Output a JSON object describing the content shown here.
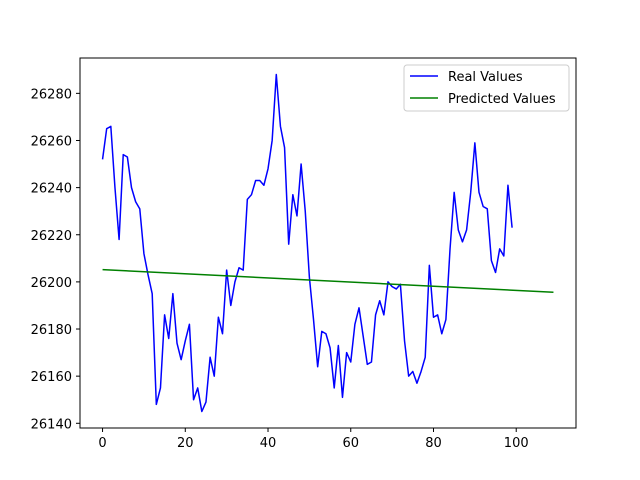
{
  "chart_data": {
    "type": "line",
    "title": "",
    "xlabel": "",
    "ylabel": "",
    "xlim": [
      -5.45,
      114.45
    ],
    "ylim": [
      26138,
      26295
    ],
    "x_ticks": [
      0,
      20,
      40,
      60,
      80,
      100
    ],
    "y_ticks": [
      26140,
      26160,
      26180,
      26200,
      26220,
      26240,
      26260,
      26280
    ],
    "grid": false,
    "legend_placement": "top-right",
    "series": [
      {
        "name": "Real Values",
        "color": "#0000ff",
        "x": [
          0,
          1,
          2,
          3,
          4,
          5,
          6,
          7,
          8,
          9,
          10,
          11,
          12,
          13,
          14,
          15,
          16,
          17,
          18,
          19,
          20,
          21,
          22,
          23,
          24,
          25,
          26,
          27,
          28,
          29,
          30,
          31,
          32,
          33,
          34,
          35,
          36,
          37,
          38,
          39,
          40,
          41,
          42,
          43,
          44,
          45,
          46,
          47,
          48,
          49,
          50,
          51,
          52,
          53,
          54,
          55,
          56,
          57,
          58,
          59,
          60,
          61,
          62,
          63,
          64,
          65,
          66,
          67,
          68,
          69,
          70,
          71,
          72,
          73,
          74,
          75,
          76,
          77,
          78,
          79,
          80,
          81,
          82,
          83,
          84,
          85,
          86,
          87,
          88,
          89,
          90,
          91,
          92,
          93,
          94,
          95,
          96,
          97,
          98,
          99
        ],
        "values": [
          26252,
          26265,
          26266,
          26240,
          26218,
          26254,
          26253,
          26240,
          26234,
          26231,
          26212,
          26203,
          26195,
          26148,
          26155,
          26186,
          26176,
          26195,
          26174,
          26167,
          26175,
          26182,
          26150,
          26155,
          26145,
          26149,
          26168,
          26160,
          26185,
          26178,
          26205,
          26190,
          26200,
          26206,
          26205,
          26235,
          26237,
          26243,
          26243,
          26241,
          26248,
          26260,
          26288,
          26266,
          26257,
          26216,
          26237,
          26228,
          26250,
          26230,
          26202,
          26184,
          26164,
          26179,
          26178,
          26172,
          26155,
          26173,
          26151,
          26170,
          26166,
          26182,
          26189,
          26177,
          26165,
          26166,
          26186,
          26192,
          26186,
          26200,
          26198,
          26197,
          26199,
          26175,
          26160,
          26162,
          26157,
          26162,
          26168,
          26207,
          26185,
          26186,
          26178,
          26184,
          26214,
          26238,
          26222,
          26217,
          26222,
          26238,
          26259,
          26238,
          26232,
          26231,
          26209,
          26204,
          26214,
          26211,
          26241,
          26223
        ]
      },
      {
        "name": "Predicted Values",
        "color": "#008000",
        "x": [
          0,
          109
        ],
        "values": [
          26205.2,
          26195.6
        ]
      }
    ]
  }
}
